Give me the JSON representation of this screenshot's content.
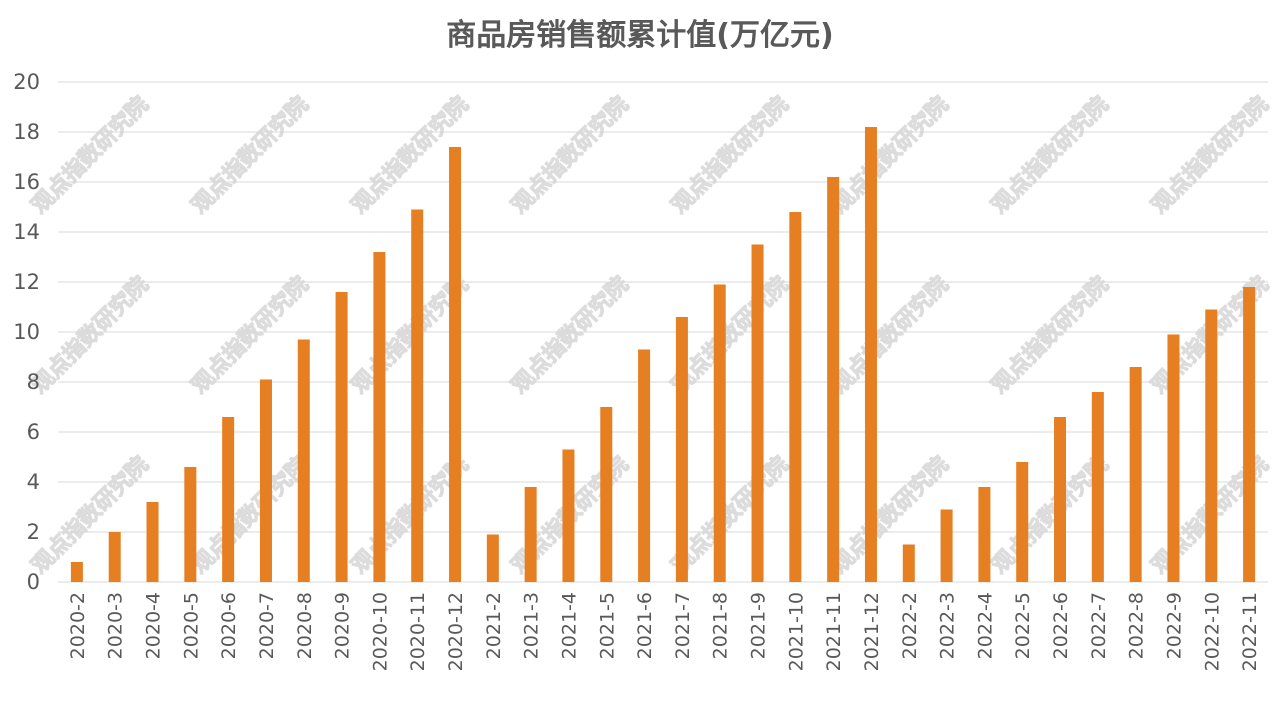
{
  "chart_data": {
    "type": "bar",
    "title": "商品房销售额累计值(万亿元)",
    "xlabel": "",
    "ylabel": "",
    "ylim": [
      0,
      20
    ],
    "yticks": [
      0,
      2,
      4,
      6,
      8,
      10,
      12,
      14,
      16,
      18,
      20
    ],
    "grid": true,
    "legend": "none",
    "bar_color": "#E67E22",
    "grid_color": "#d9d9d9",
    "categories": [
      "2020-2",
      "2020-3",
      "2020-4",
      "2020-5",
      "2020-6",
      "2020-7",
      "2020-8",
      "2020-9",
      "2020-10",
      "2020-11",
      "2020-12",
      "2021-2",
      "2021-3",
      "2021-4",
      "2021-5",
      "2021-6",
      "2021-7",
      "2021-8",
      "2021-9",
      "2021-10",
      "2021-11",
      "2021-12",
      "2022-2",
      "2022-3",
      "2022-4",
      "2022-5",
      "2022-6",
      "2022-7",
      "2022-8",
      "2022-9",
      "2022-10",
      "2022-11"
    ],
    "values": [
      0.8,
      2.0,
      3.2,
      4.6,
      6.6,
      8.1,
      9.7,
      11.6,
      13.2,
      14.9,
      17.4,
      1.9,
      3.8,
      5.3,
      7.0,
      9.3,
      10.6,
      11.9,
      13.5,
      14.8,
      16.2,
      18.2,
      1.5,
      2.9,
      3.8,
      4.8,
      6.6,
      7.6,
      8.6,
      9.9,
      10.9,
      11.8
    ]
  },
  "watermark": "观点指数研究院"
}
